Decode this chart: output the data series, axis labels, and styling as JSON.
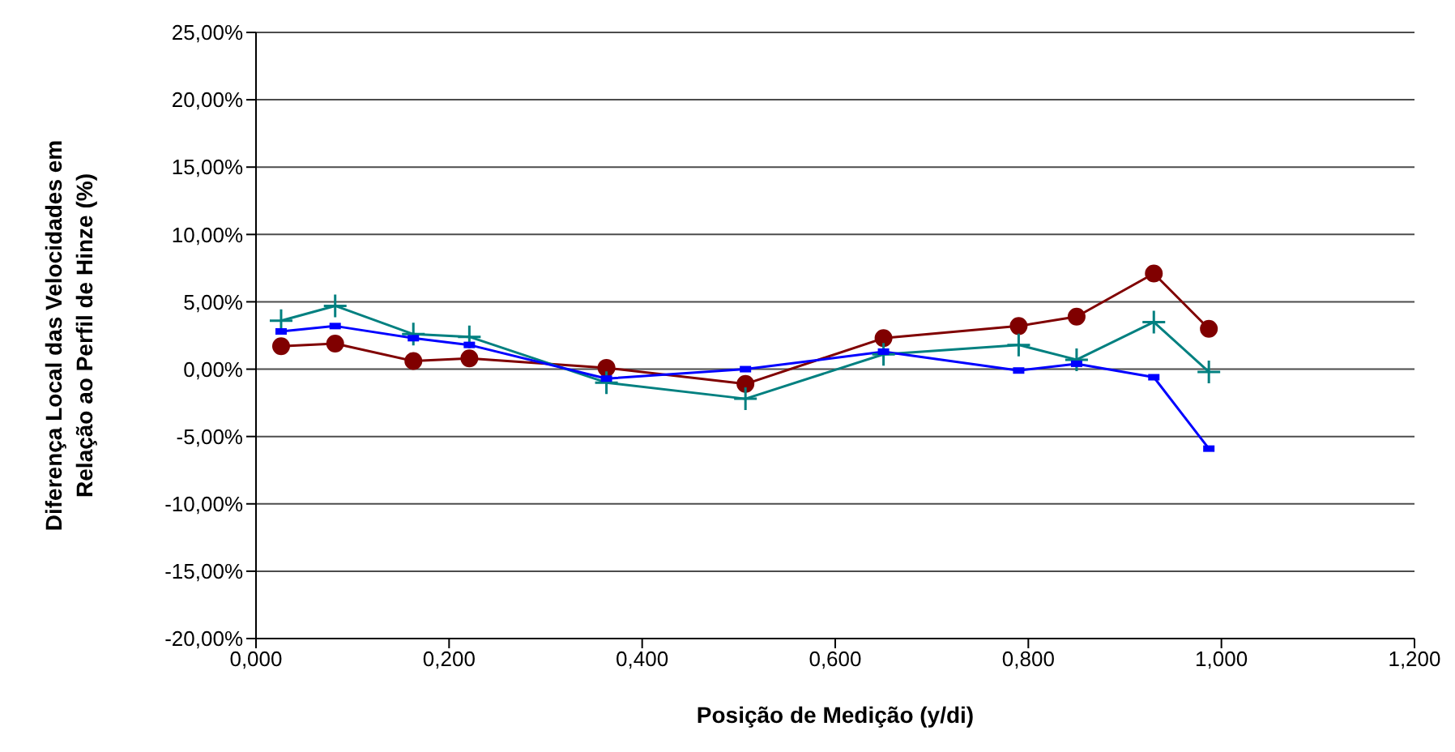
{
  "chart_data": {
    "type": "line",
    "xlabel": "Posição de Medição (y/di)",
    "ylabel": "Diferença Local das Velocidades em Relação ao Perfil de Hinze (%)",
    "x": [
      0.026,
      0.082,
      0.163,
      0.221,
      0.363,
      0.507,
      0.65,
      0.79,
      0.85,
      0.93,
      0.987
    ],
    "series": [
      {
        "color": "#800000",
        "marker": "circle",
        "values": [
          1.7,
          1.9,
          0.6,
          0.8,
          0.1,
          -1.1,
          2.3,
          3.2,
          3.9,
          7.1,
          3.0
        ]
      },
      {
        "color": "#008080",
        "marker": "cross",
        "values": [
          3.6,
          4.7,
          2.6,
          2.4,
          -1.0,
          -2.2,
          1.1,
          1.8,
          0.7,
          3.5,
          -0.2
        ]
      },
      {
        "color": "#0000ff",
        "marker": "square",
        "values": [
          2.8,
          3.2,
          2.3,
          1.8,
          -0.7,
          0.0,
          1.3,
          -0.1,
          0.4,
          -0.6,
          -5.9
        ]
      }
    ],
    "xlim": [
      0,
      1.2
    ],
    "xticks": [
      {
        "value": 0,
        "label": "0,000"
      },
      {
        "value": 0.2,
        "label": "0,200"
      },
      {
        "value": 0.4,
        "label": "0,400"
      },
      {
        "value": 0.6,
        "label": "0,600"
      },
      {
        "value": 0.8,
        "label": "0,800"
      },
      {
        "value": 1,
        "label": "1,000"
      },
      {
        "value": 1.2,
        "label": "1,200"
      }
    ],
    "ylim": [
      -20,
      25
    ],
    "yticks": [
      {
        "value": -20,
        "label": "-20,00%"
      },
      {
        "value": -15,
        "label": "-15,00%"
      },
      {
        "value": -10,
        "label": "-10,00%"
      },
      {
        "value": -5,
        "label": "-5,00%"
      },
      {
        "value": 0,
        "label": "0,00%"
      },
      {
        "value": 5,
        "label": "5,00%"
      },
      {
        "value": 10,
        "label": "10,00%"
      },
      {
        "value": 15,
        "label": "15,00%"
      },
      {
        "value": 20,
        "label": "20,00%"
      },
      {
        "value": 25,
        "label": "25,00%"
      }
    ],
    "grid": "y",
    "legend": false
  }
}
